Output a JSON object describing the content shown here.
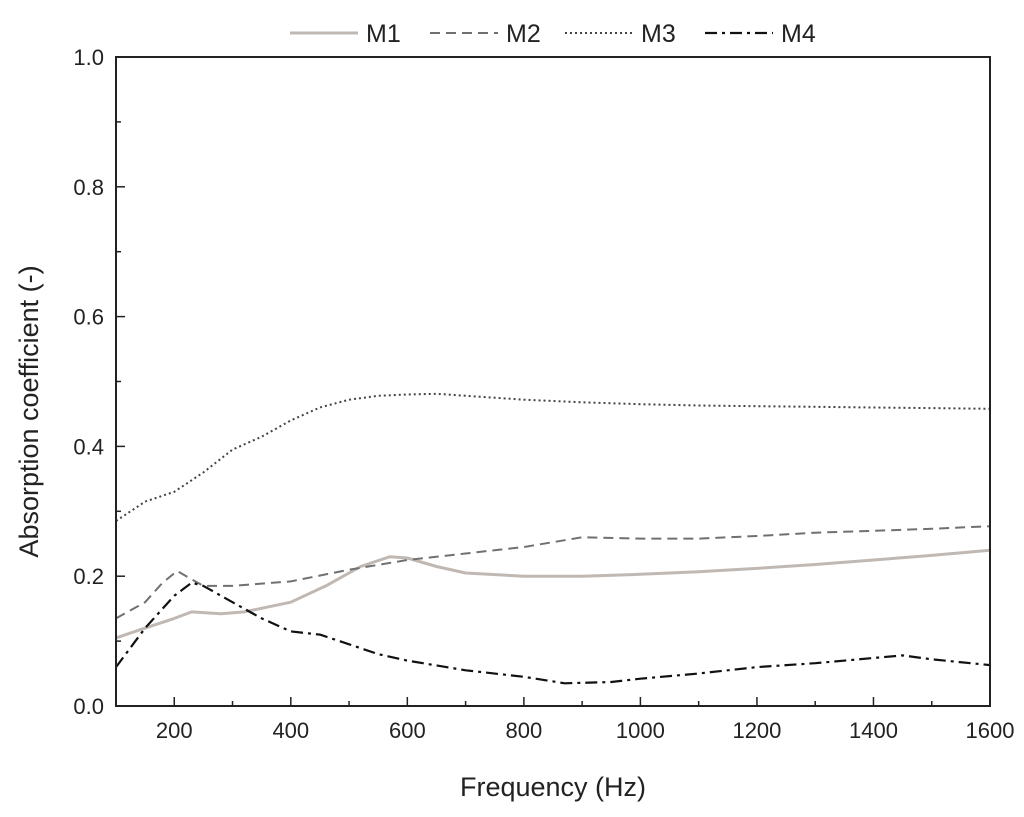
{
  "chart_data": {
    "type": "line",
    "xlabel": "Frequency (Hz)",
    "ylabel": "Absorption coefficient (-)",
    "xlim": [
      100,
      1600
    ],
    "ylim": [
      0.0,
      1.0
    ],
    "xticks": [
      200,
      400,
      600,
      800,
      1000,
      1200,
      1400,
      1600
    ],
    "xtick_labels": [
      "200",
      "400",
      "600",
      "800",
      "1000",
      "1200",
      "1400",
      "1600"
    ],
    "yticks": [
      0.0,
      0.2,
      0.4,
      0.6,
      0.8,
      1.0
    ],
    "ytick_labels": [
      "0.0",
      "0.2",
      "0.4",
      "0.6",
      "0.8",
      "1.0"
    ],
    "grid": false,
    "legend_position": "top",
    "series": [
      {
        "name": "M1",
        "style": "solid",
        "color": "#c0b8b3",
        "x": [
          100,
          150,
          200,
          230,
          280,
          320,
          400,
          460,
          520,
          570,
          600,
          650,
          700,
          800,
          900,
          1000,
          1100,
          1200,
          1300,
          1400,
          1500,
          1600
        ],
        "y": [
          0.105,
          0.12,
          0.135,
          0.145,
          0.142,
          0.145,
          0.16,
          0.185,
          0.215,
          0.23,
          0.228,
          0.215,
          0.205,
          0.2,
          0.2,
          0.203,
          0.207,
          0.212,
          0.218,
          0.225,
          0.232,
          0.24
        ]
      },
      {
        "name": "M2",
        "style": "dashed",
        "color": "#707070",
        "x": [
          100,
          150,
          180,
          205,
          230,
          250,
          300,
          400,
          500,
          600,
          700,
          800,
          900,
          1000,
          1100,
          1200,
          1300,
          1400,
          1500,
          1600
        ],
        "y": [
          0.135,
          0.16,
          0.19,
          0.208,
          0.195,
          0.185,
          0.185,
          0.192,
          0.21,
          0.225,
          0.235,
          0.245,
          0.26,
          0.258,
          0.258,
          0.262,
          0.267,
          0.27,
          0.273,
          0.277
        ]
      },
      {
        "name": "M3",
        "style": "dotted",
        "color": "#444444",
        "x": [
          100,
          150,
          200,
          250,
          300,
          350,
          400,
          450,
          500,
          550,
          600,
          650,
          700,
          800,
          900,
          1000,
          1100,
          1200,
          1300,
          1400,
          1500,
          1600
        ],
        "y": [
          0.285,
          0.315,
          0.33,
          0.36,
          0.395,
          0.415,
          0.44,
          0.46,
          0.472,
          0.478,
          0.48,
          0.481,
          0.478,
          0.472,
          0.468,
          0.465,
          0.463,
          0.462,
          0.461,
          0.46,
          0.459,
          0.458
        ]
      },
      {
        "name": "M4",
        "style": "dashdot",
        "color": "#111111",
        "x": [
          100,
          150,
          200,
          230,
          250,
          300,
          350,
          400,
          450,
          500,
          550,
          600,
          700,
          800,
          870,
          950,
          1000,
          1100,
          1200,
          1300,
          1400,
          1450,
          1500,
          1600
        ],
        "y": [
          0.06,
          0.12,
          0.17,
          0.19,
          0.185,
          0.16,
          0.135,
          0.115,
          0.11,
          0.095,
          0.08,
          0.07,
          0.055,
          0.045,
          0.035,
          0.037,
          0.042,
          0.05,
          0.06,
          0.066,
          0.074,
          0.078,
          0.072,
          0.063
        ]
      }
    ]
  }
}
